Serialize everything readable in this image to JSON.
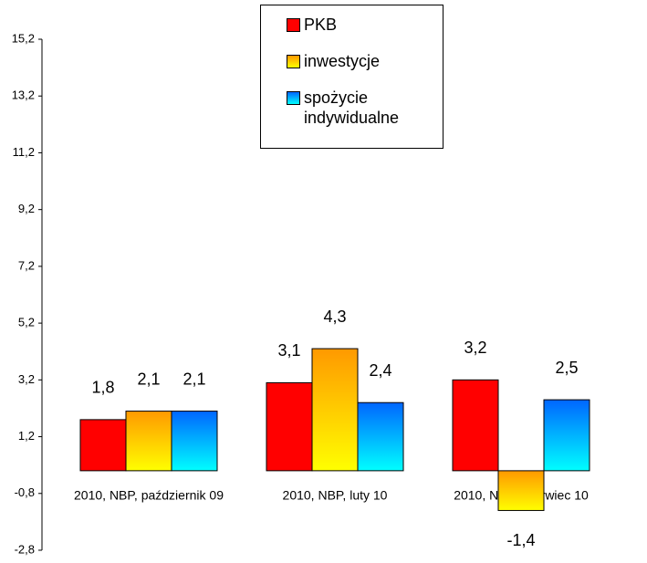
{
  "chart_data": {
    "type": "bar",
    "categories": [
      "2010, NBP, październik 09",
      "2010, NBP, luty 10",
      "2010, NBP, czerwiec 10"
    ],
    "series": [
      {
        "name": "PKB",
        "color": "#ff0000",
        "values": [
          1.8,
          3.1,
          3.2
        ],
        "value_labels": [
          "1,8",
          "3,1",
          "3,2"
        ]
      },
      {
        "name": "inwestycje",
        "color": "#ff9900",
        "values": [
          2.1,
          4.3,
          -1.4
        ],
        "value_labels": [
          "2,1",
          "4,3",
          "-1,4"
        ]
      },
      {
        "name": "spożycie indywidualne",
        "color": "#0066ff",
        "values": [
          2.1,
          2.4,
          2.5
        ],
        "value_labels": [
          "2,1",
          "2,4",
          "2,5"
        ]
      }
    ],
    "ylim": [
      -2.8,
      15.2
    ],
    "yticks": [
      {
        "value": -2.8,
        "label": "-2,8"
      },
      {
        "value": -0.8,
        "label": "-0,8"
      },
      {
        "value": 1.2,
        "label": "1,2"
      },
      {
        "value": 3.2,
        "label": "3,2"
      },
      {
        "value": 5.2,
        "label": "5,2"
      },
      {
        "value": 7.2,
        "label": "7,2"
      },
      {
        "value": 9.2,
        "label": "9,2"
      },
      {
        "value": 11.2,
        "label": "11,2"
      },
      {
        "value": 13.2,
        "label": "13,2"
      },
      {
        "value": 15.2,
        "label": "15,2"
      }
    ],
    "legend": "top"
  }
}
